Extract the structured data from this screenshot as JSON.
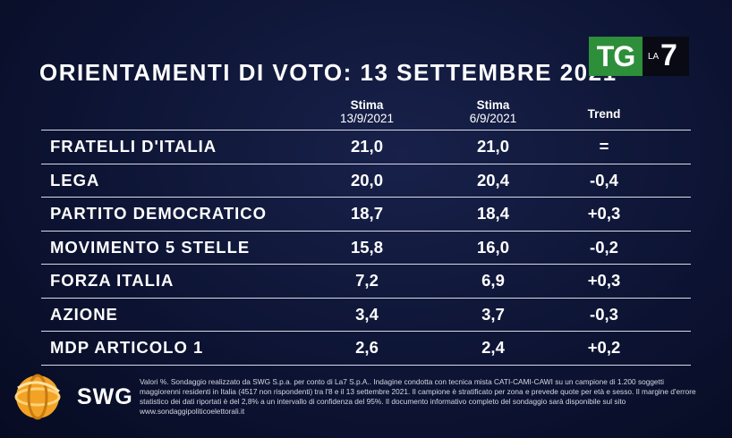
{
  "chart_data": {
    "type": "table",
    "title": "ORIENTAMENTI DI VOTO: 13 SETTEMBRE 2021",
    "columns": [
      {
        "label": "Stima",
        "sublabel": "13/9/2021"
      },
      {
        "label": "Stima",
        "sublabel": "6/9/2021"
      },
      {
        "label": "Trend",
        "sublabel": ""
      }
    ],
    "rows": [
      {
        "party": "FRATELLI D'ITALIA",
        "est_13_9": "21,0",
        "est_6_9": "21,0",
        "trend": "="
      },
      {
        "party": "LEGA",
        "est_13_9": "20,0",
        "est_6_9": "20,4",
        "trend": "-0,4"
      },
      {
        "party": "PARTITO DEMOCRATICO",
        "est_13_9": "18,7",
        "est_6_9": "18,4",
        "trend": "+0,3"
      },
      {
        "party": "MOVIMENTO 5 STELLE",
        "est_13_9": "15,8",
        "est_6_9": "16,0",
        "trend": "-0,2"
      },
      {
        "party": "FORZA ITALIA",
        "est_13_9": "7,2",
        "est_6_9": "6,9",
        "trend": "+0,3"
      },
      {
        "party": "AZIONE",
        "est_13_9": "3,4",
        "est_6_9": "3,7",
        "trend": "-0,3"
      },
      {
        "party": "MDP ARTICOLO 1",
        "est_13_9": "2,6",
        "est_6_9": "2,4",
        "trend": "+0,2"
      }
    ]
  },
  "logos": {
    "broadcaster_tg": "TG",
    "broadcaster_la": "LA",
    "broadcaster_seven": "7",
    "pollster": "SWG",
    "tg_color": "#2d8f3a",
    "swg_color": "#f2a326"
  },
  "footnote": "Valori %. Sondaggio realizzato da SWG S.p.a. per conto di La7 S.p.A.. Indagine condotta con tecnica mista CATI-CAMI-CAWI su un campione di 1.200 soggetti maggiorenni residenti in Italia (4517 non rispondenti) tra l'8 e il 13 settembre 2021. Il campione è stratificato per zona e prevede quote per età e sesso. Il margine d'errore statistico dei dati riportati è del 2,8% a un intervallo di confidenza del 95%. Il documento informativo completo del sondaggio sarà disponibile sul sito www.sondaggipoliticoelettorali.it"
}
